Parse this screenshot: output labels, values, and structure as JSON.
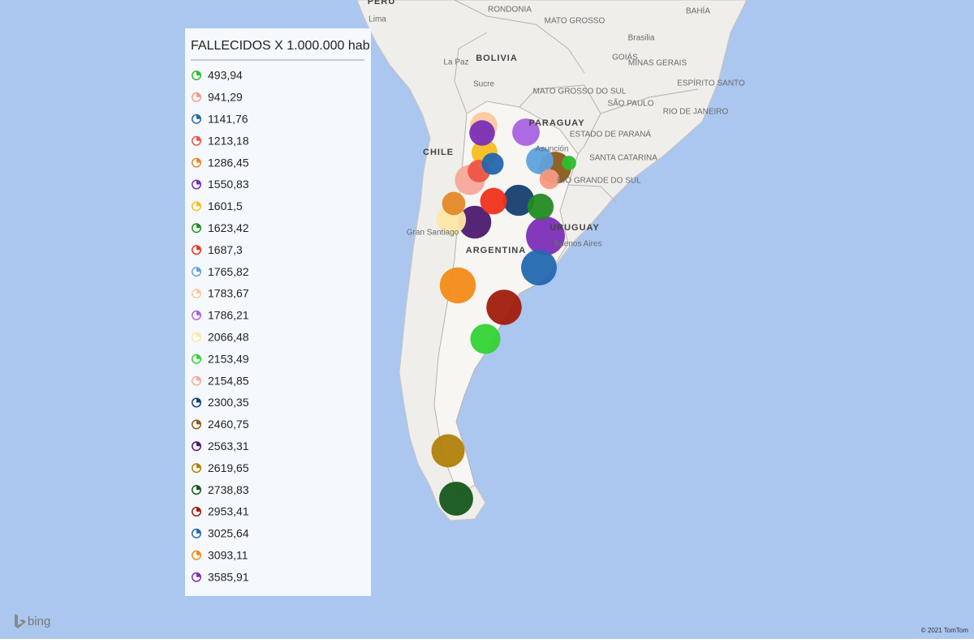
{
  "legend": {
    "title": "FALLECIDOS X 1.000.000 hab",
    "items": [
      {
        "label": "493,94",
        "value": 493.94,
        "color": "#2ebd2e"
      },
      {
        "label": "941,29",
        "value": 941.29,
        "color": "#f59a82"
      },
      {
        "label": "1141,76",
        "value": 1141.76,
        "color": "#2466ad"
      },
      {
        "label": "1213,18",
        "value": 1213.18,
        "color": "#ee5442"
      },
      {
        "label": "1286,45",
        "value": 1286.45,
        "color": "#e4892a"
      },
      {
        "label": "1550,83",
        "value": 1550.83,
        "color": "#7a2db5"
      },
      {
        "label": "1601,5",
        "value": 1601.5,
        "color": "#f5bd1f"
      },
      {
        "label": "1623,42",
        "value": 1623.42,
        "color": "#228b22"
      },
      {
        "label": "1687,3",
        "value": 1687.3,
        "color": "#f0321c"
      },
      {
        "label": "1765,82",
        "value": 1765.82,
        "color": "#5fa2dd"
      },
      {
        "label": "1783,67",
        "value": 1783.67,
        "color": "#f9c99e"
      },
      {
        "label": "1786,21",
        "value": 1786.21,
        "color": "#a863e0"
      },
      {
        "label": "2066,48",
        "value": 2066.48,
        "color": "#fde6a8"
      },
      {
        "label": "2153,49",
        "value": 2153.49,
        "color": "#33d333"
      },
      {
        "label": "2154,85",
        "value": 2154.85,
        "color": "#f7a89a"
      },
      {
        "label": "2300,35",
        "value": 2300.35,
        "color": "#163f6f"
      },
      {
        "label": "2460,75",
        "value": 2460.75,
        "color": "#8b5a1a"
      },
      {
        "label": "2563,31",
        "value": 2563.31,
        "color": "#4b1a6e"
      },
      {
        "label": "2619,65",
        "value": 2619.65,
        "color": "#b07f0a"
      },
      {
        "label": "2738,83",
        "value": 2738.83,
        "color": "#14561a"
      },
      {
        "label": "2953,41",
        "value": 2953.41,
        "color": "#a01c0c"
      },
      {
        "label": "3025,64",
        "value": 3025.64,
        "color": "#2368b0"
      },
      {
        "label": "3093,11",
        "value": 3093.11,
        "color": "#f38b18"
      },
      {
        "label": "3585,91",
        "value": 3585.91,
        "color": "#7d2db8"
      }
    ]
  },
  "map": {
    "labels": [
      "PERU",
      "Lima",
      "RONDONIA",
      "MATO GROSSO",
      "BAHÍA",
      "Brasilia",
      "La Paz",
      "BOLIVIA",
      "GOIÁS",
      "MINAS GERAIS",
      "Sucre",
      "MATO GROSSO DO SUL",
      "ESPÍRITO SANTO",
      "SÃO PAULO",
      "RIO DE JANEIRO",
      "PARAGUAY",
      "ESTADO DE PARANÁ",
      "Asunción",
      "CHILE",
      "SANTA CATARINA",
      "RIO GRANDE DO SUL",
      "URUGUAY",
      "Gran Santiago",
      "Buenos Aires",
      "ARGENTINA"
    ],
    "brand": "bing",
    "attribution": "© 2021 TomTom"
  }
}
